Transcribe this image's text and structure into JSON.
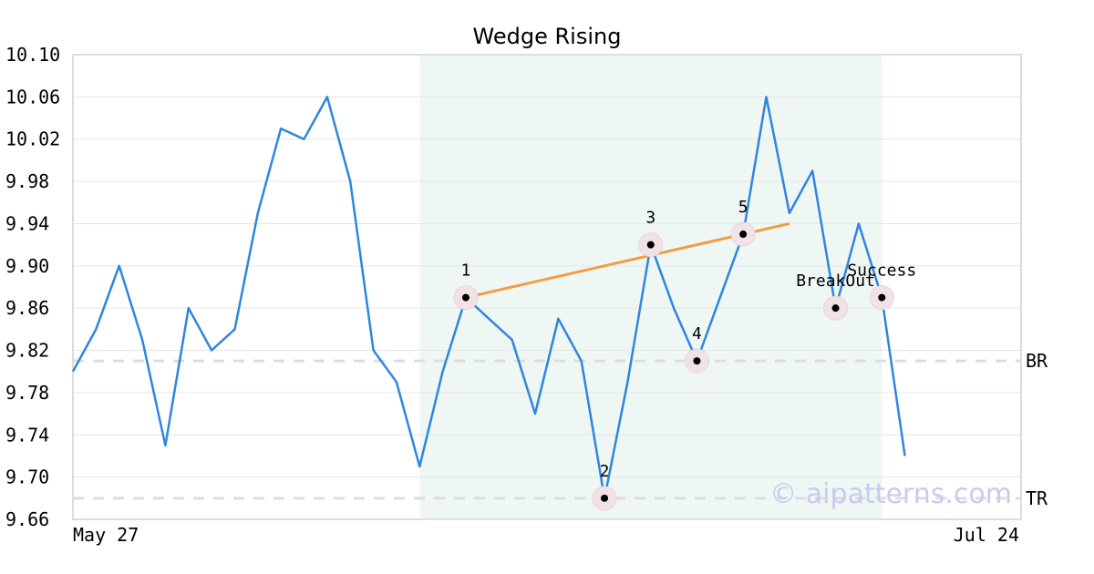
{
  "chart_data": {
    "type": "line",
    "title": "Wedge Rising",
    "xlabel": "",
    "ylabel": "",
    "ylim": [
      9.66,
      10.1
    ],
    "yticks": [
      "10.10",
      "10.06",
      "10.02",
      "9.98",
      "9.94",
      "9.90",
      "9.86",
      "9.82",
      "9.78",
      "9.74",
      "9.70",
      "9.66"
    ],
    "x_start_label": "May 27",
    "x_end_label": "Jul 24",
    "grid": true,
    "series": [
      {
        "color": "#2e86de",
        "values": [
          9.8,
          9.84,
          9.9,
          9.83,
          9.73,
          9.86,
          9.82,
          9.84,
          9.95,
          10.03,
          10.02,
          10.06,
          9.98,
          9.82,
          9.79,
          9.71,
          9.8,
          9.87,
          9.85,
          9.83,
          9.76,
          9.85,
          9.81,
          9.68,
          9.79,
          9.92,
          9.86,
          9.81,
          9.87,
          9.93,
          10.06,
          9.95,
          9.99,
          9.86,
          9.94,
          9.87,
          9.72
        ]
      }
    ],
    "highlight_region": {
      "from_index": 15,
      "to_index": 35,
      "color": "#eef7f3"
    },
    "trendline": {
      "color": "#f39c45",
      "from": [
        17,
        9.87
      ],
      "to": [
        31,
        9.94
      ]
    },
    "reference_lines": [
      {
        "label": "BR",
        "value": 9.81
      },
      {
        "label": "TR",
        "value": 9.68
      }
    ],
    "points": [
      {
        "label": "1",
        "index": 17,
        "value": 9.87,
        "label_pos": "above"
      },
      {
        "label": "2",
        "index": 23,
        "value": 9.68,
        "label_pos": "above"
      },
      {
        "label": "3",
        "index": 25,
        "value": 9.92,
        "label_pos": "above"
      },
      {
        "label": "4",
        "index": 27,
        "value": 9.81,
        "label_pos": "above"
      },
      {
        "label": "5",
        "index": 29,
        "value": 9.93,
        "label_pos": "above"
      },
      {
        "label": "BreakOut",
        "index": 33,
        "value": 9.86,
        "label_pos": "above"
      },
      {
        "label": "Success",
        "index": 35,
        "value": 9.87,
        "label_pos": "above"
      }
    ],
    "watermark": "© aipatterns.com"
  }
}
